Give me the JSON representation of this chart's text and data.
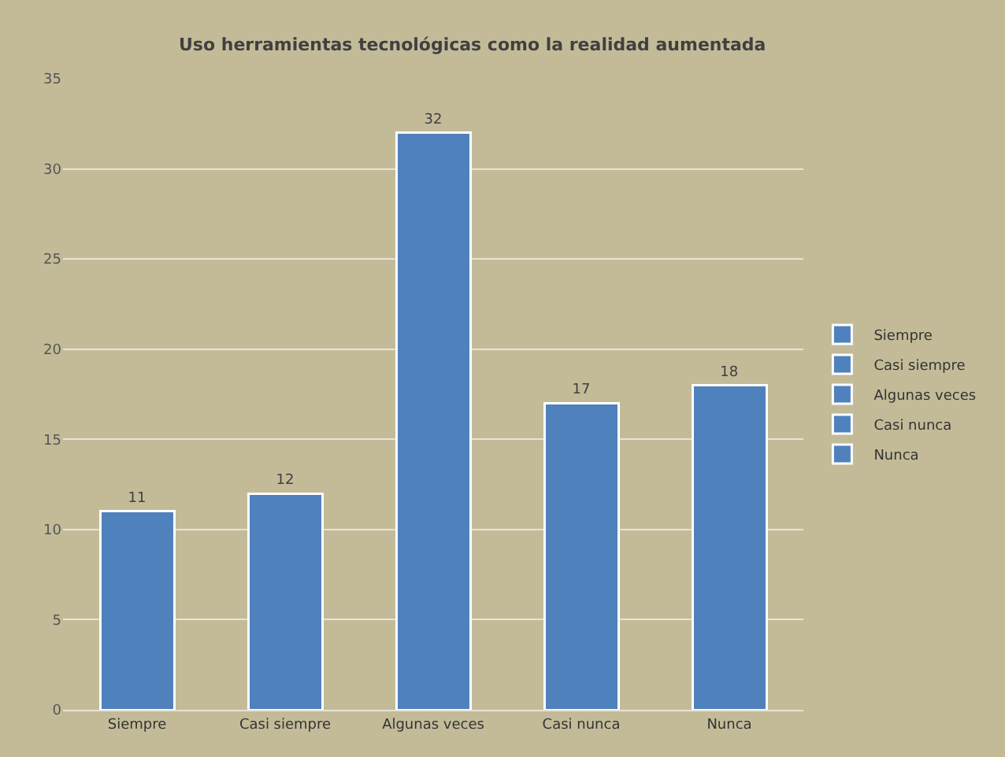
{
  "chart_data": {
    "type": "bar",
    "title": "Uso herramientas tecnológicas como la realidad aumentada",
    "categories": [
      "Siempre",
      "Casi siempre",
      "Algunas veces",
      "Casi nunca",
      "Nunca"
    ],
    "series": [
      {
        "name": "Siempre",
        "color": "#4f81bd",
        "values": [
          11,
          null,
          null,
          null,
          null
        ]
      },
      {
        "name": "Casi siempre",
        "color": "#4f81bd",
        "values": [
          null,
          12,
          null,
          null,
          null
        ]
      },
      {
        "name": "Algunas veces",
        "color": "#4f81bd",
        "values": [
          null,
          null,
          32,
          null,
          null
        ]
      },
      {
        "name": "Casi nunca",
        "color": "#4f81bd",
        "values": [
          null,
          null,
          null,
          17,
          null
        ]
      },
      {
        "name": "Nunca",
        "color": "#4f81bd",
        "values": [
          null,
          null,
          null,
          null,
          18
        ]
      }
    ],
    "stacked": true,
    "ylim": [
      0,
      35
    ],
    "yticks": [
      0,
      5,
      10,
      15,
      20,
      25,
      30,
      35
    ],
    "grid": "y",
    "legend": "right",
    "data_labels": true
  }
}
